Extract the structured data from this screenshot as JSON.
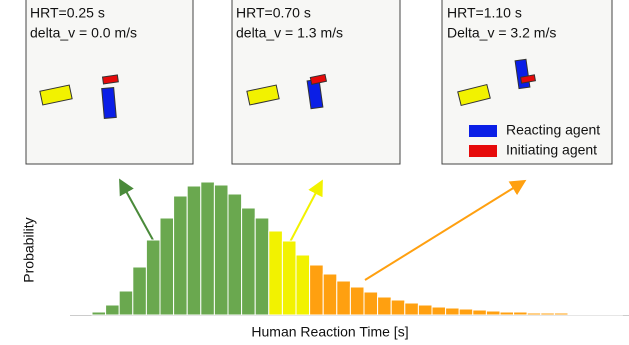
{
  "chart_data": {
    "type": "bar",
    "xlabel": "Human Reaction Time [s]",
    "ylabel": "Probability",
    "categories": [
      null,
      null,
      null,
      null,
      null,
      null,
      null,
      null,
      null,
      null,
      null,
      null,
      null,
      null,
      null,
      null,
      null,
      null,
      null,
      null,
      null,
      null,
      null,
      null,
      null,
      null,
      null,
      null,
      null,
      null,
      null,
      null,
      null,
      null,
      null,
      null,
      null,
      null,
      null
    ],
    "series": [
      {
        "color": "#6aa84f",
        "values": [
          3,
          10,
          24,
          48,
          75,
          97,
          119,
          129,
          133,
          130,
          121,
          107,
          97,
          null,
          null,
          null,
          null,
          null,
          null,
          null,
          null,
          null,
          null,
          null,
          null,
          null,
          null,
          null,
          null,
          null,
          null,
          null,
          null,
          null,
          null,
          null,
          null,
          null,
          null
        ]
      },
      {
        "color": "#f2f200",
        "values": [
          null,
          null,
          null,
          null,
          null,
          null,
          null,
          null,
          null,
          null,
          null,
          null,
          null,
          84,
          74,
          60,
          null,
          null,
          null,
          null,
          null,
          null,
          null,
          null,
          null,
          null,
          null,
          null,
          null,
          null,
          null,
          null,
          null,
          null,
          null,
          null,
          null,
          null,
          null
        ]
      },
      {
        "color": "#ffa010",
        "values": [
          null,
          null,
          null,
          null,
          null,
          null,
          null,
          null,
          null,
          null,
          null,
          null,
          null,
          null,
          null,
          null,
          50,
          41,
          34,
          28,
          23,
          18,
          15,
          12,
          10,
          8,
          7,
          6,
          5,
          4,
          3,
          3,
          2,
          2,
          2,
          1,
          1,
          1,
          1
        ]
      }
    ],
    "panels": [
      {
        "lines": [
          "HRT=0.25 s",
          "delta_v = 0.0 m/s"
        ]
      },
      {
        "lines": [
          "HRT=0.70 s",
          "delta_v = 1.3 m/s"
        ]
      },
      {
        "lines": [
          "HRT=1.10 s",
          "Delta_v = 3.2 m/s"
        ]
      }
    ],
    "legend": [
      {
        "name": "Reacting agent",
        "color": "#0a1ee6"
      },
      {
        "name": "Initiating agent",
        "color": "#e60a0a"
      }
    ]
  }
}
